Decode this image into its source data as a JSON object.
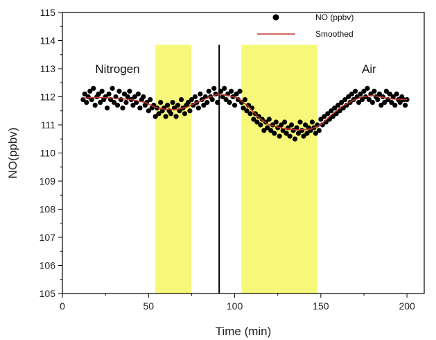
{
  "chart_data": {
    "type": "scatter",
    "title": "",
    "xlabel": "Time (min)",
    "ylabel": "NO(ppbv)",
    "xlim": [
      0,
      210
    ],
    "ylim": [
      105,
      115
    ],
    "xticks": [
      0,
      50,
      100,
      150,
      200
    ],
    "yticks": [
      105,
      106,
      107,
      108,
      109,
      110,
      111,
      112,
      113,
      114,
      115
    ],
    "legend": {
      "position": "top-right",
      "entries": [
        {
          "label": "NO (ppbv)",
          "kind": "marker",
          "color": "#000000"
        },
        {
          "label": "Smoothed",
          "kind": "line",
          "color": "#c0392b"
        }
      ]
    },
    "annotations": [
      {
        "text": "Nitrogen",
        "x": 32,
        "y": 113.0
      },
      {
        "text": "Air",
        "x": 178,
        "y": 113.0
      }
    ],
    "shaded_regions": [
      {
        "x": [
          54,
          75
        ],
        "color": "#f7f77a"
      },
      {
        "x": [
          104,
          148
        ],
        "color": "#f7f77a"
      }
    ],
    "vertical_line": {
      "x": 91,
      "color": "#000000"
    },
    "series": [
      {
        "name": "NO (ppbv)",
        "kind": "scatter",
        "color": "#000000",
        "points": [
          [
            12,
            111.9
          ],
          [
            13,
            112.1
          ],
          [
            14,
            111.8
          ],
          [
            15,
            112.0
          ],
          [
            16,
            112.2
          ],
          [
            17,
            111.9
          ],
          [
            18,
            112.3
          ],
          [
            19,
            111.7
          ],
          [
            20,
            112.0
          ],
          [
            21,
            112.1
          ],
          [
            22,
            111.8
          ],
          [
            23,
            112.2
          ],
          [
            24,
            111.9
          ],
          [
            25,
            112.0
          ],
          [
            26,
            111.6
          ],
          [
            27,
            112.1
          ],
          [
            28,
            111.9
          ],
          [
            29,
            112.3
          ],
          [
            30,
            111.8
          ],
          [
            31,
            112.0
          ],
          [
            32,
            111.7
          ],
          [
            33,
            112.2
          ],
          [
            34,
            111.9
          ],
          [
            35,
            111.6
          ],
          [
            36,
            112.1
          ],
          [
            37,
            111.8
          ],
          [
            38,
            112.0
          ],
          [
            39,
            112.2
          ],
          [
            40,
            111.9
          ],
          [
            41,
            111.7
          ],
          [
            42,
            112.0
          ],
          [
            43,
            111.8
          ],
          [
            44,
            112.1
          ],
          [
            45,
            111.6
          ],
          [
            46,
            111.9
          ],
          [
            47,
            112.0
          ],
          [
            48,
            111.7
          ],
          [
            49,
            111.8
          ],
          [
            50,
            111.5
          ],
          [
            51,
            111.9
          ],
          [
            52,
            111.6
          ],
          [
            53,
            111.7
          ],
          [
            54,
            111.3
          ],
          [
            55,
            111.6
          ],
          [
            56,
            111.4
          ],
          [
            57,
            111.8
          ],
          [
            58,
            111.5
          ],
          [
            59,
            111.6
          ],
          [
            60,
            111.3
          ],
          [
            61,
            111.7
          ],
          [
            62,
            111.5
          ],
          [
            63,
            111.4
          ],
          [
            64,
            111.8
          ],
          [
            65,
            111.6
          ],
          [
            66,
            111.3
          ],
          [
            67,
            111.7
          ],
          [
            68,
            111.5
          ],
          [
            69,
            111.9
          ],
          [
            70,
            111.6
          ],
          [
            71,
            111.4
          ],
          [
            72,
            111.7
          ],
          [
            73,
            111.8
          ],
          [
            74,
            111.5
          ],
          [
            75,
            111.9
          ],
          [
            76,
            111.7
          ],
          [
            77,
            112.0
          ],
          [
            78,
            111.8
          ],
          [
            79,
            111.6
          ],
          [
            80,
            112.1
          ],
          [
            81,
            111.9
          ],
          [
            82,
            111.7
          ],
          [
            83,
            112.0
          ],
          [
            84,
            111.8
          ],
          [
            85,
            112.2
          ],
          [
            86,
            112.0
          ],
          [
            87,
            111.9
          ],
          [
            88,
            112.3
          ],
          [
            89,
            112.1
          ],
          [
            90,
            111.8
          ],
          [
            92,
            112.2
          ],
          [
            93,
            112.0
          ],
          [
            94,
            112.3
          ],
          [
            95,
            111.9
          ],
          [
            96,
            112.1
          ],
          [
            97,
            111.8
          ],
          [
            98,
            112.2
          ],
          [
            99,
            112.0
          ],
          [
            100,
            111.7
          ],
          [
            101,
            112.1
          ],
          [
            102,
            111.9
          ],
          [
            103,
            112.2
          ],
          [
            104,
            111.8
          ],
          [
            105,
            111.6
          ],
          [
            106,
            111.9
          ],
          [
            107,
            111.5
          ],
          [
            108,
            111.7
          ],
          [
            109,
            111.4
          ],
          [
            110,
            111.6
          ],
          [
            111,
            111.2
          ],
          [
            112,
            111.4
          ],
          [
            113,
            111.1
          ],
          [
            114,
            111.3
          ],
          [
            115,
            111.0
          ],
          [
            116,
            111.2
          ],
          [
            117,
            110.8
          ],
          [
            118,
            111.1
          ],
          [
            119,
            110.9
          ],
          [
            120,
            111.2
          ],
          [
            121,
            110.8
          ],
          [
            122,
            111.0
          ],
          [
            123,
            110.7
          ],
          [
            124,
            111.1
          ],
          [
            125,
            110.9
          ],
          [
            126,
            110.6
          ],
          [
            127,
            111.0
          ],
          [
            128,
            110.8
          ],
          [
            129,
            111.1
          ],
          [
            130,
            110.7
          ],
          [
            131,
            110.9
          ],
          [
            132,
            110.6
          ],
          [
            133,
            111.0
          ],
          [
            134,
            110.8
          ],
          [
            135,
            110.5
          ],
          [
            136,
            110.9
          ],
          [
            137,
            110.7
          ],
          [
            138,
            111.1
          ],
          [
            139,
            110.8
          ],
          [
            140,
            110.6
          ],
          [
            141,
            111.0
          ],
          [
            142,
            110.7
          ],
          [
            143,
            110.9
          ],
          [
            144,
            110.8
          ],
          [
            145,
            111.1
          ],
          [
            146,
            110.9
          ],
          [
            147,
            110.7
          ],
          [
            148,
            111.0
          ],
          [
            149,
            110.8
          ],
          [
            150,
            111.2
          ],
          [
            151,
            111.0
          ],
          [
            152,
            111.3
          ],
          [
            153,
            111.1
          ],
          [
            154,
            111.4
          ],
          [
            155,
            111.2
          ],
          [
            156,
            111.5
          ],
          [
            157,
            111.3
          ],
          [
            158,
            111.6
          ],
          [
            159,
            111.4
          ],
          [
            160,
            111.7
          ],
          [
            161,
            111.5
          ],
          [
            162,
            111.8
          ],
          [
            163,
            111.6
          ],
          [
            164,
            111.9
          ],
          [
            165,
            111.7
          ],
          [
            166,
            112.0
          ],
          [
            167,
            111.8
          ],
          [
            168,
            112.1
          ],
          [
            169,
            111.9
          ],
          [
            170,
            112.2
          ],
          [
            171,
            112.0
          ],
          [
            172,
            111.8
          ],
          [
            173,
            112.1
          ],
          [
            174,
            111.9
          ],
          [
            175,
            112.2
          ],
          [
            176,
            112.0
          ],
          [
            177,
            112.3
          ],
          [
            178,
            111.9
          ],
          [
            179,
            112.1
          ],
          [
            180,
            111.8
          ],
          [
            181,
            112.2
          ],
          [
            182,
            112.0
          ],
          [
            183,
            111.9
          ],
          [
            184,
            112.1
          ],
          [
            185,
            111.7
          ],
          [
            186,
            112.0
          ],
          [
            187,
            111.8
          ],
          [
            188,
            112.2
          ],
          [
            189,
            111.9
          ],
          [
            190,
            112.1
          ],
          [
            191,
            111.8
          ],
          [
            192,
            112.0
          ],
          [
            193,
            111.7
          ],
          [
            194,
            112.1
          ],
          [
            195,
            111.9
          ],
          [
            196,
            111.8
          ],
          [
            197,
            112.0
          ],
          [
            198,
            111.9
          ],
          [
            199,
            111.7
          ],
          [
            200,
            111.9
          ]
        ]
      },
      {
        "name": "Smoothed",
        "kind": "line",
        "color": "#c0392b",
        "points": [
          [
            12,
            111.95
          ],
          [
            20,
            111.98
          ],
          [
            30,
            111.95
          ],
          [
            40,
            111.9
          ],
          [
            48,
            111.8
          ],
          [
            54,
            111.62
          ],
          [
            60,
            111.55
          ],
          [
            66,
            111.55
          ],
          [
            72,
            111.62
          ],
          [
            78,
            111.8
          ],
          [
            84,
            111.95
          ],
          [
            90,
            112.1
          ],
          [
            96,
            112.05
          ],
          [
            102,
            111.95
          ],
          [
            108,
            111.65
          ],
          [
            114,
            111.25
          ],
          [
            120,
            111.0
          ],
          [
            128,
            110.88
          ],
          [
            136,
            110.82
          ],
          [
            144,
            110.85
          ],
          [
            150,
            111.0
          ],
          [
            156,
            111.35
          ],
          [
            162,
            111.65
          ],
          [
            168,
            111.85
          ],
          [
            174,
            112.0
          ],
          [
            180,
            112.05
          ],
          [
            186,
            111.98
          ],
          [
            192,
            111.92
          ],
          [
            200,
            111.9
          ]
        ]
      }
    ]
  }
}
